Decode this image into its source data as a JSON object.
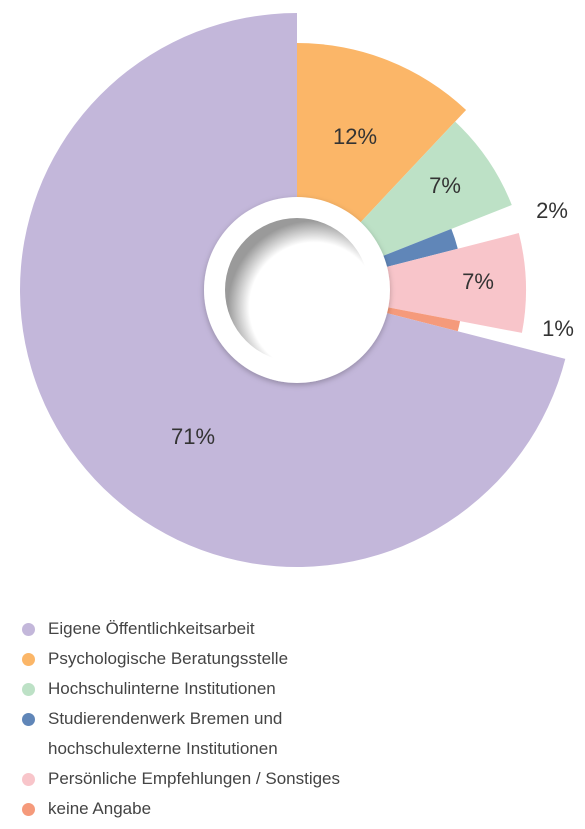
{
  "chart_data": {
    "type": "pie",
    "categories": [
      "Eigene Öffentlichkeitsarbeit",
      "Psychologische Beratungsstelle",
      "Hochschulinterne Institutionen",
      "Studierendenwerk Bremen und hochschulexterne Institutionen",
      "Persönliche Empfehlungen / Sonstiges",
      "keine Angabe"
    ],
    "values": [
      71,
      12,
      7,
      2,
      7,
      1
    ],
    "value_labels": [
      "71%",
      "12%",
      "7%",
      "2%",
      "7%",
      "1%"
    ],
    "colors": [
      "#c3b7da",
      "#fbb668",
      "#bde1c6",
      "#6086b8",
      "#f8c5ca",
      "#f59a7b"
    ]
  }
}
